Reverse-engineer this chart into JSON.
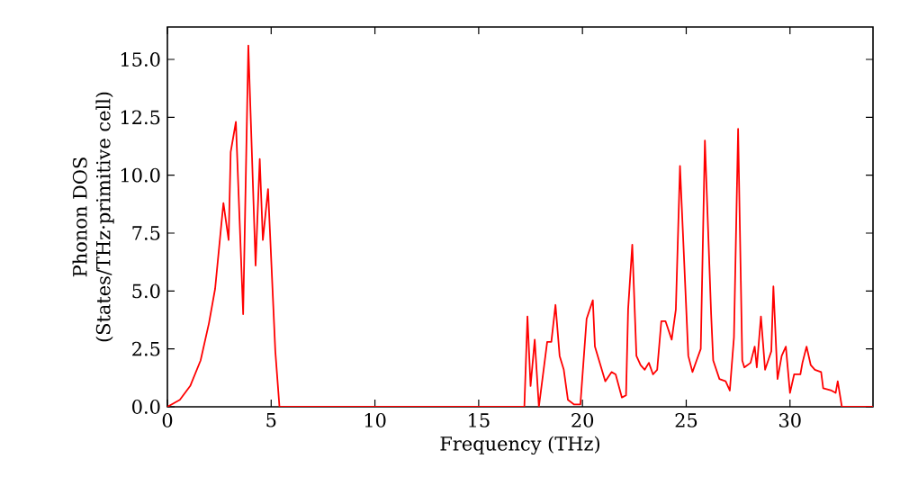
{
  "chart_data": {
    "type": "line",
    "xlabel": "Frequency (THz)",
    "ylabel": "Phonon DOS\n(States/THz·primitive cell)",
    "xlim": [
      0,
      34
    ],
    "ylim": [
      0,
      16.4
    ],
    "xticks": [
      0,
      5,
      10,
      15,
      20,
      25,
      30
    ],
    "yticks": [
      {
        "value": 0,
        "label": "0.0"
      },
      {
        "value": 2.5,
        "label": "2.5"
      },
      {
        "value": 5,
        "label": "5.0"
      },
      {
        "value": 7.5,
        "label": "7.5"
      },
      {
        "value": 10,
        "label": "10.0"
      },
      {
        "value": 12.5,
        "label": "12.5"
      },
      {
        "value": 15,
        "label": "15.0"
      }
    ],
    "marker": "none",
    "line_style": "solid",
    "series": [
      {
        "color": "#ff0000",
        "x": [
          0,
          0.6,
          1.1,
          1.6,
          2.0,
          2.3,
          2.7,
          2.95,
          3.05,
          3.3,
          3.65,
          3.9,
          4.25,
          4.45,
          4.6,
          4.85,
          5.2,
          5.4,
          17.2,
          17.35,
          17.5,
          17.7,
          17.9,
          18.3,
          18.5,
          18.7,
          18.9,
          19.1,
          19.3,
          19.6,
          19.9,
          20.2,
          20.5,
          20.6,
          20.8,
          21.1,
          21.4,
          21.6,
          21.9,
          22.1,
          22.2,
          22.4,
          22.6,
          22.8,
          23.0,
          23.2,
          23.4,
          23.6,
          23.8,
          24.0,
          24.3,
          24.5,
          24.7,
          25.1,
          25.3,
          25.5,
          25.7,
          25.9,
          26.2,
          26.3,
          26.6,
          26.9,
          27.1,
          27.3,
          27.5,
          27.7,
          27.8,
          28.1,
          28.3,
          28.4,
          28.6,
          28.8,
          29.1,
          29.2,
          29.4,
          29.6,
          29.8,
          30.0,
          30.2,
          30.5,
          30.6,
          30.8,
          31.0,
          31.2,
          31.5,
          31.6,
          32.0,
          32.2,
          32.3,
          32.5,
          34
        ],
        "values": [
          0,
          0.3,
          0.9,
          2.0,
          3.6,
          5.1,
          8.8,
          7.2,
          11.0,
          12.3,
          4.0,
          15.6,
          6.1,
          10.7,
          7.2,
          9.4,
          2.4,
          0,
          0,
          3.9,
          0.9,
          2.9,
          0,
          2.8,
          2.8,
          4.4,
          2.2,
          1.6,
          0.3,
          0.1,
          0.1,
          3.8,
          4.6,
          2.6,
          2.0,
          1.1,
          1.5,
          1.4,
          0.4,
          0.5,
          4.2,
          7.0,
          2.2,
          1.8,
          1.6,
          1.9,
          1.4,
          1.6,
          3.7,
          3.7,
          2.9,
          4.2,
          10.4,
          2.2,
          1.5,
          2.0,
          2.5,
          11.5,
          4.0,
          2.0,
          1.2,
          1.1,
          0.7,
          3.0,
          12.0,
          2.0,
          1.7,
          1.9,
          2.6,
          1.7,
          3.9,
          1.6,
          2.4,
          5.2,
          1.2,
          2.2,
          2.6,
          0.6,
          1.4,
          1.4,
          1.9,
          2.6,
          1.8,
          1.6,
          1.5,
          0.8,
          0.7,
          0.6,
          1.1,
          0,
          0
        ]
      }
    ]
  }
}
